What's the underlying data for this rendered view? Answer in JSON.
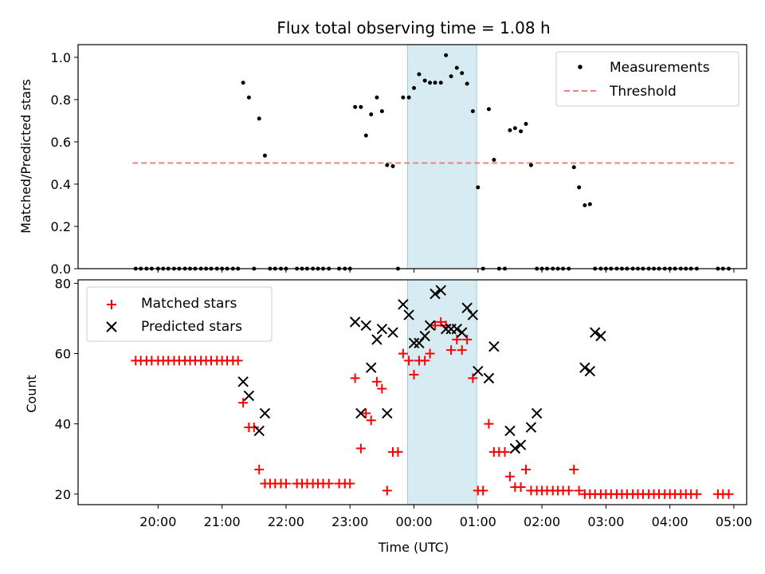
{
  "title": "Flux total observing time = 1.08 h",
  "chart_data": [
    {
      "type": "scatter",
      "ylabel": "Matched/Predicted stars",
      "ylim": [
        0,
        1.06
      ],
      "yticks": [
        0.0,
        0.2,
        0.4,
        0.6,
        0.8,
        1.0
      ],
      "ytick_labels": [
        "0.0",
        "0.2",
        "0.4",
        "0.6",
        "0.8",
        "1.0"
      ],
      "x_unit": "hours UTC (ticks beyond 24 continue into next day)",
      "xlim": [
        18.75,
        29.2
      ],
      "highlight_span": [
        23.9,
        24.98
      ],
      "legend": {
        "placement": "top-right",
        "entries": [
          "Measurements",
          "Threshold"
        ]
      },
      "threshold": {
        "name": "Threshold",
        "y": 0.5,
        "x_range": [
          19.6,
          29.0
        ],
        "color": "#f08080"
      },
      "series": [
        {
          "name": "Measurements",
          "color": "#000000",
          "x": [
            19.65,
            19.73,
            19.82,
            19.9,
            20.0,
            20.08,
            20.16,
            20.25,
            20.33,
            20.42,
            20.5,
            20.58,
            20.67,
            20.75,
            20.83,
            20.92,
            21.0,
            21.08,
            21.17,
            21.25,
            21.33,
            21.42,
            21.5,
            21.58,
            21.67,
            21.75,
            21.83,
            21.92,
            22.0,
            22.17,
            22.25,
            22.33,
            22.42,
            22.5,
            22.58,
            22.67,
            22.83,
            22.92,
            23.0,
            23.08,
            23.17,
            23.25,
            23.33,
            23.42,
            23.5,
            23.58,
            23.67,
            23.75,
            23.83,
            23.92,
            24.0,
            24.08,
            24.17,
            24.25,
            24.33,
            24.42,
            24.5,
            24.58,
            24.67,
            24.75,
            24.83,
            24.92,
            25.0,
            25.08,
            25.17,
            25.25,
            25.33,
            25.42,
            25.5,
            25.58,
            25.67,
            25.75,
            25.83,
            25.92,
            26.0,
            26.08,
            26.17,
            26.25,
            26.33,
            26.42,
            26.5,
            26.58,
            26.67,
            26.75,
            26.83,
            26.92,
            27.0,
            27.08,
            27.17,
            27.25,
            27.33,
            27.42,
            27.5,
            27.58,
            27.67,
            27.75,
            27.83,
            27.92,
            28.0,
            28.08,
            28.17,
            28.25,
            28.33,
            28.42,
            28.75,
            28.83,
            28.92
          ],
          "y": [
            0,
            0,
            0,
            0,
            0,
            0,
            0,
            0,
            0,
            0,
            0,
            0,
            0,
            0,
            0,
            0,
            0,
            0,
            0,
            0,
            0.88,
            0.81,
            0,
            0.71,
            0.535,
            0,
            0,
            0,
            0,
            0,
            0,
            0,
            0,
            0,
            0,
            0,
            0,
            0,
            0,
            0.765,
            0.765,
            0.63,
            0.73,
            0.81,
            0.745,
            0.49,
            0.485,
            0,
            0.81,
            0.81,
            0.855,
            0.92,
            0.89,
            0.88,
            0.88,
            0.88,
            1.01,
            0.91,
            0.95,
            0.925,
            0.875,
            0.745,
            0.385,
            0,
            0.755,
            0.515,
            0,
            0,
            0.655,
            0.665,
            0.65,
            0.685,
            0.49,
            0,
            0,
            0,
            0,
            0,
            0,
            0,
            0.48,
            0.385,
            0.3,
            0.305,
            0,
            0,
            0,
            0,
            0,
            0,
            0,
            0,
            0,
            0,
            0,
            0,
            0,
            0,
            0,
            0,
            0,
            0,
            0,
            0,
            0,
            0,
            0
          ]
        }
      ]
    },
    {
      "type": "scatter",
      "xlabel": "Time (UTC)",
      "ylabel": "Count",
      "ylim": [
        17,
        81
      ],
      "yticks": [
        20,
        40,
        60,
        80
      ],
      "ytick_labels": [
        "20",
        "40",
        "60",
        "80"
      ],
      "x_unit": "hours UTC (ticks beyond 24 continue into next day)",
      "xlim": [
        18.75,
        29.2
      ],
      "xticks": [
        20,
        21,
        22,
        23,
        24,
        25,
        26,
        27,
        28,
        29
      ],
      "xtick_labels": [
        "20:00",
        "21:00",
        "22:00",
        "23:00",
        "00:00",
        "01:00",
        "02:00",
        "03:00",
        "04:00",
        "05:00"
      ],
      "highlight_span": [
        23.9,
        24.98
      ],
      "legend": {
        "placement": "top-left",
        "entries": [
          "Matched stars",
          "Predicted stars"
        ]
      },
      "series": [
        {
          "name": "Matched stars",
          "marker": "plus",
          "color": "#ff0000",
          "x": [
            19.65,
            19.73,
            19.82,
            19.9,
            20.0,
            20.08,
            20.16,
            20.25,
            20.33,
            20.42,
            20.5,
            20.58,
            20.67,
            20.75,
            20.83,
            20.92,
            21.0,
            21.08,
            21.17,
            21.25,
            21.33,
            21.42,
            21.5,
            21.58,
            21.67,
            21.75,
            21.83,
            21.92,
            22.0,
            22.17,
            22.25,
            22.33,
            22.42,
            22.5,
            22.58,
            22.67,
            22.83,
            22.92,
            23.0,
            23.08,
            23.17,
            23.25,
            23.33,
            23.42,
            23.5,
            23.58,
            23.67,
            23.75,
            23.83,
            23.92,
            24.0,
            24.08,
            24.17,
            24.25,
            24.33,
            24.42,
            24.5,
            24.58,
            24.67,
            24.75,
            24.83,
            24.92,
            25.0,
            25.08,
            25.17,
            25.25,
            25.33,
            25.42,
            25.5,
            25.58,
            25.67,
            25.75,
            25.83,
            25.92,
            26.0,
            26.08,
            26.17,
            26.25,
            26.33,
            26.42,
            26.5,
            26.58,
            26.67,
            26.75,
            26.83,
            26.92,
            27.0,
            27.08,
            27.17,
            27.25,
            27.33,
            27.42,
            27.5,
            27.58,
            27.67,
            27.75,
            27.83,
            27.92,
            28.0,
            28.08,
            28.17,
            28.25,
            28.33,
            28.42,
            28.75,
            28.83,
            28.92
          ],
          "y": [
            58,
            58,
            58,
            58,
            58,
            58,
            58,
            58,
            58,
            58,
            58,
            58,
            58,
            58,
            58,
            58,
            58,
            58,
            58,
            58,
            46,
            39,
            39,
            27,
            23,
            23,
            23,
            23,
            23,
            23,
            23,
            23,
            23,
            23,
            23,
            23,
            23,
            23,
            23,
            53,
            33,
            43,
            41,
            52,
            50,
            21,
            32,
            32,
            60,
            58,
            54,
            58,
            58,
            60,
            68,
            69,
            68,
            61,
            64,
            61,
            64,
            53,
            21,
            21,
            40,
            32,
            32,
            32,
            25,
            22,
            22,
            27,
            21,
            21,
            21,
            21,
            21,
            21,
            21,
            21,
            27,
            21,
            20,
            20,
            20,
            20,
            20,
            20,
            20,
            20,
            20,
            20,
            20,
            20,
            20,
            20,
            20,
            20,
            20,
            20,
            20,
            20,
            20,
            20,
            20,
            20,
            20
          ]
        },
        {
          "name": "Predicted stars",
          "marker": "x",
          "color": "#000000",
          "x": [
            21.33,
            21.42,
            21.58,
            21.67,
            23.08,
            23.17,
            23.25,
            23.33,
            23.42,
            23.5,
            23.58,
            23.67,
            23.83,
            23.92,
            24.0,
            24.08,
            24.17,
            24.25,
            24.33,
            24.42,
            24.5,
            24.58,
            24.67,
            24.75,
            24.83,
            24.92,
            25.0,
            25.17,
            25.25,
            25.5,
            25.58,
            25.67,
            25.83,
            25.92,
            26.67,
            26.75,
            26.83,
            26.92
          ],
          "y": [
            52,
            48,
            38,
            43,
            69,
            43,
            68,
            56,
            64,
            67,
            43,
            66,
            74,
            71,
            63,
            63,
            65,
            68,
            77,
            78,
            67,
            67,
            67,
            66,
            73,
            71,
            55,
            53,
            62,
            38,
            33,
            34,
            39,
            43,
            56,
            55,
            66,
            65
          ]
        }
      ]
    }
  ]
}
